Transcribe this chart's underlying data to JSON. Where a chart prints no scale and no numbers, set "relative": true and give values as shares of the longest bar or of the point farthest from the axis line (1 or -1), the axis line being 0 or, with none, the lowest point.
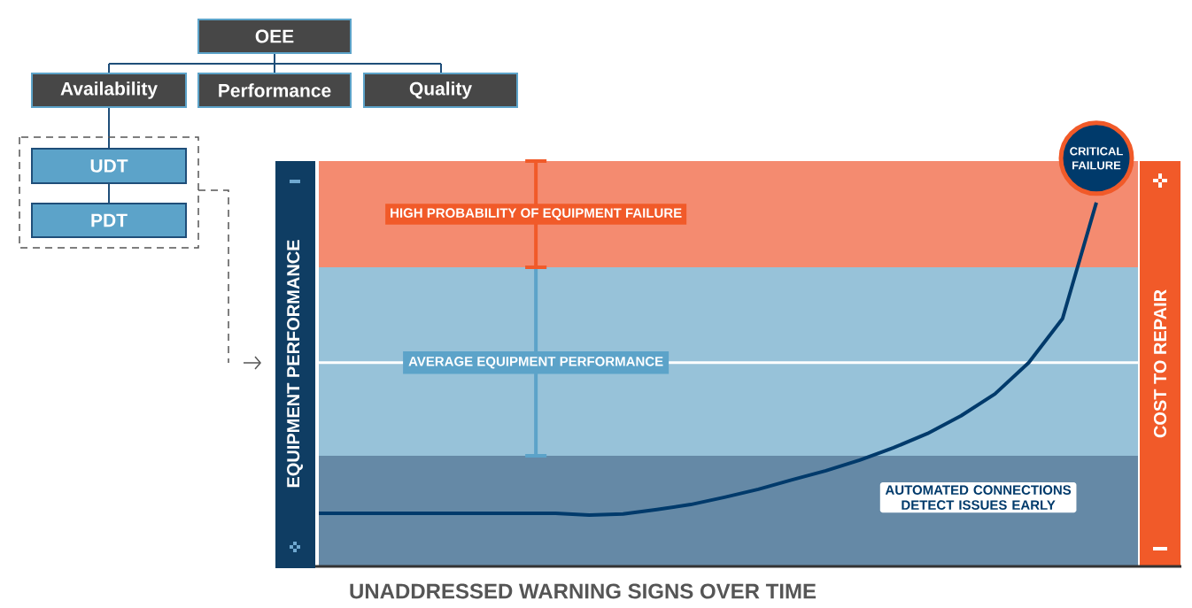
{
  "chart_data": {
    "type": "line",
    "relative": true,
    "xlabel": "UNADDRESSED WARNING SIGNS OVER TIME",
    "ylabel": "EQUIPMENT PERFORMANCE",
    "y2label": "COST TO REPAIR",
    "categories": [
      null,
      null,
      null,
      null,
      null,
      null,
      null,
      null,
      null,
      null,
      null,
      null,
      null,
      null,
      null,
      null,
      null,
      null,
      null,
      null,
      null,
      null,
      null,
      null
    ],
    "series": [
      {
        "color": "#003a6b",
        "values": [
          0.146,
          0.146,
          0.146,
          0.146,
          0.146,
          0.146,
          0.146,
          0.146,
          0.141,
          0.144,
          0.156,
          0.17,
          0.19,
          0.212,
          0.238,
          0.263,
          0.292,
          0.326,
          0.365,
          0.414,
          0.474,
          0.56,
          0.681,
          1.0
        ]
      }
    ],
    "marker": "none",
    "line_style": "solid",
    "bands": [
      {
        "axis": "y",
        "from": 0,
        "to": 0.304,
        "color": "#6589a6"
      },
      {
        "axis": "y",
        "from": 0.304,
        "to": 0.822,
        "color": "#97c2d9"
      },
      {
        "axis": "y",
        "from": 0.822,
        "to": 1.114,
        "label": "HIGH PROBABILITY OF EQUIPMENT FAILURE",
        "color": "#f48b70"
      }
    ],
    "ref_lines": [
      {
        "axis": "y",
        "value": 0.56,
        "label": "AVERAGE EQUIPMENT PERFORMANCE",
        "color": "#ffffff"
      }
    ],
    "annotations": [
      {
        "text": "CRITICAL FAILURE",
        "y": 1.0
      },
      "AUTOMATED CONNECTIONS DETECT ISSUES EARLY",
      "OEE",
      "Availability",
      "Performance",
      "Quality",
      "UDT",
      "PDT"
    ]
  }
}
